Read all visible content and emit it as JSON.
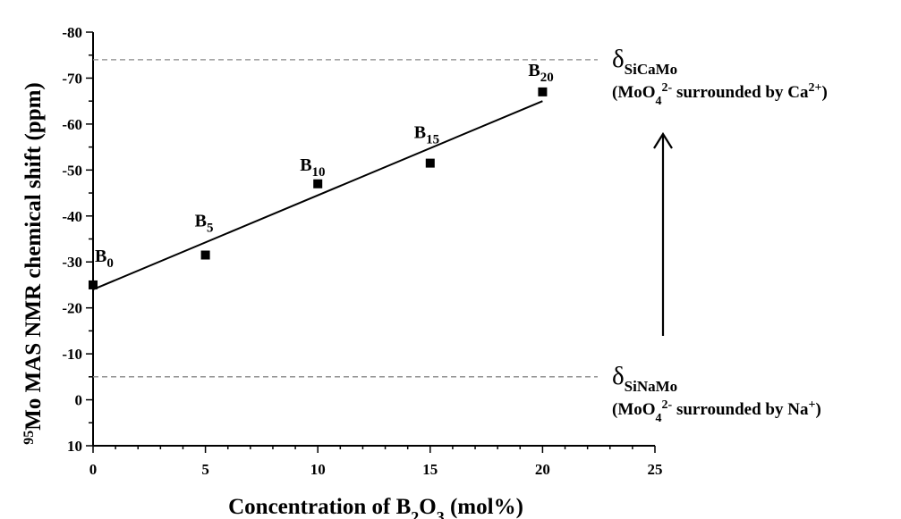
{
  "chart_data": {
    "type": "scatter",
    "xlabel": {
      "pre": "Concentration of  B",
      "sub": "2",
      "mid": "O",
      "sub2": "3",
      "post": " (mol%)"
    },
    "ylabel": {
      "sup": "95",
      "text": "Mo MAS NMR chemical shift (ppm)"
    },
    "xlim": [
      0,
      25
    ],
    "ylim": [
      10,
      -80
    ],
    "x_ticks": [
      "0",
      "5",
      "10",
      "15",
      "20",
      "25"
    ],
    "y_ticks": [
      "10",
      "0",
      "-10",
      "-20",
      "-30",
      "-40",
      "-50",
      "-60",
      "-70",
      "-80"
    ],
    "series": [
      {
        "points": [
          {
            "x": 0,
            "y": -25,
            "label": "B",
            "sub": "0"
          },
          {
            "x": 5,
            "y": -31.5,
            "label": "B",
            "sub": "5"
          },
          {
            "x": 10,
            "y": -47,
            "label": "B",
            "sub": "10"
          },
          {
            "x": 15,
            "y": -51.5,
            "label": "B",
            "sub": "15"
          },
          {
            "x": 20,
            "y": -67,
            "label": "B",
            "sub": "20"
          }
        ]
      }
    ],
    "trendline": {
      "x": [
        0,
        20
      ],
      "y": [
        -24,
        -65
      ]
    },
    "reference_lines": [
      {
        "y": -74,
        "style": "dashed",
        "symbol": "δ",
        "symbol_sub": "SiCaMo",
        "note": {
          "pre": "(MoO",
          "sub": "4",
          "sup": "2-",
          "post": " surrounded by Ca",
          "sup2": "2+",
          "end": ")"
        }
      },
      {
        "y": -5,
        "style": "dashed",
        "symbol": "δ",
        "symbol_sub": "SiNaMo",
        "note": {
          "pre": "(MoO",
          "sub": "4",
          "sup": "2-",
          "post": " surrounded by Na",
          "sup2": "+",
          "end": ")"
        }
      }
    ],
    "arrow": {
      "direction": "up"
    },
    "grid": false,
    "legend": "none"
  }
}
